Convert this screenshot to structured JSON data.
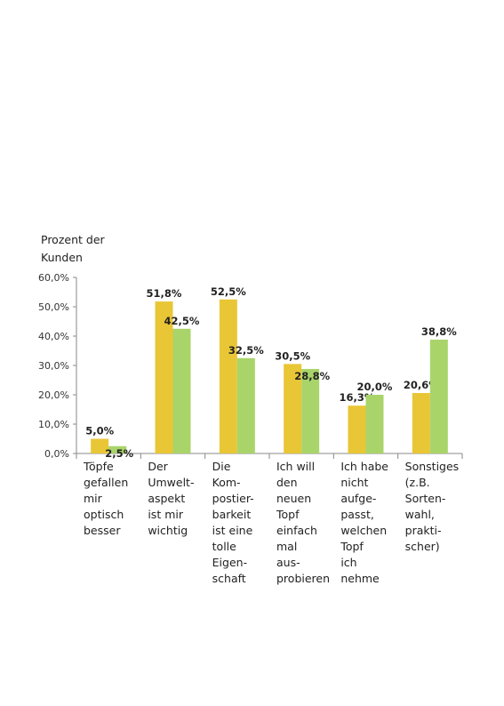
{
  "chart_data": {
    "type": "bar",
    "ylabel_lines": [
      "Prozent der",
      "Kunden"
    ],
    "ylim": [
      0,
      60
    ],
    "yticks": [
      "0,0%",
      "10,0%",
      "20,0%",
      "30,0%",
      "40,0%",
      "50,0%",
      "60,0%"
    ],
    "grid": false,
    "categories": [
      [
        "Töpfe",
        "gefallen",
        "mir",
        "optisch",
        "besser"
      ],
      [
        "Der",
        "Umwelt-",
        "aspekt",
        "ist mir",
        "wichtig"
      ],
      [
        "Die",
        "Kom-",
        "postier-",
        "barkeit",
        "ist eine",
        "tolle",
        "Eigen-",
        "schaft"
      ],
      [
        "Ich will",
        "den",
        "neuen",
        "Topf",
        "einfach",
        "mal",
        "aus-",
        "probieren"
      ],
      [
        "Ich habe",
        "nicht",
        "aufge-",
        "passt,",
        "welchen",
        "Topf",
        "ich",
        "nehme"
      ],
      [
        "Sonstiges",
        "(z.B.",
        "Sorten-",
        "wahl,",
        "prakti-",
        "scher)"
      ]
    ],
    "series": [
      {
        "values": [
          5.0,
          51.8,
          52.5,
          30.5,
          16.3,
          20.6
        ],
        "labels": [
          "5,0%",
          "51,8%",
          "52,5%",
          "30,5%",
          "16,3%",
          "20,6%"
        ],
        "color": "#E9C636"
      },
      {
        "values": [
          2.5,
          42.5,
          32.5,
          28.8,
          20.0,
          38.8
        ],
        "labels": [
          "2,5%",
          "42,5%",
          "32,5%",
          "28,8%",
          "20,0%",
          "38,8%"
        ],
        "color": "#A9D46A"
      }
    ]
  }
}
